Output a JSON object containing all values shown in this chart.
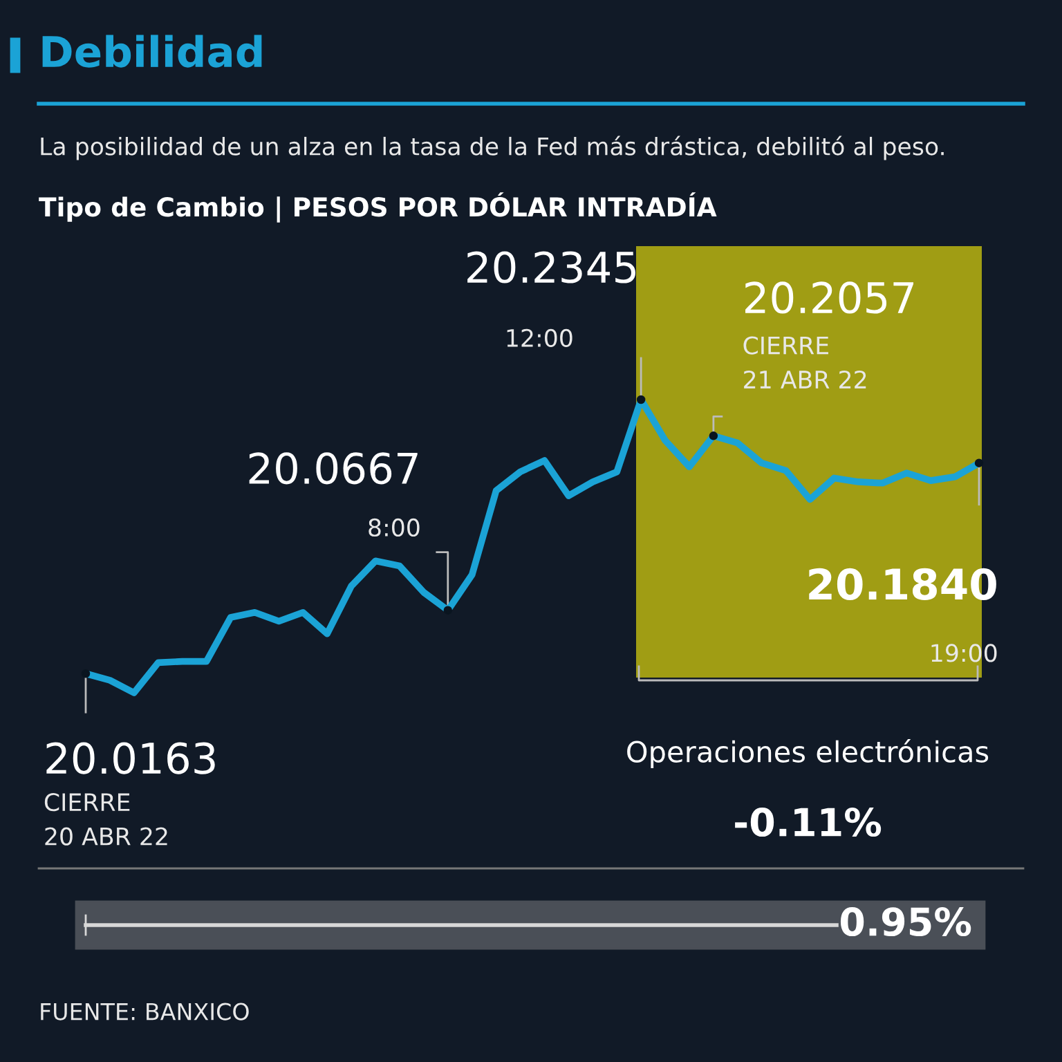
{
  "chart_data": {
    "type": "line",
    "title": "Debilidad",
    "subtitle": "La posibilidad de un alza en la tasa de la Fed más drástica, debilitó al peso.",
    "categories": [
      null,
      null,
      null,
      null,
      null,
      null,
      null,
      null,
      null,
      null,
      null,
      null,
      null,
      null,
      null,
      null,
      null,
      null,
      null,
      null,
      null,
      null,
      null,
      null,
      null,
      null,
      null,
      null,
      null,
      null,
      null,
      null,
      null,
      null,
      null,
      null,
      null,
      null
    ],
    "series": [
      {
        "color": "#1ba3d6",
        "values": [
          20.0163,
          20.011,
          20.001,
          20.025,
          20.026,
          20.026,
          20.061,
          20.065,
          20.058,
          20.065,
          20.048,
          20.086,
          20.106,
          20.102,
          20.081,
          20.0667,
          20.095,
          20.162,
          20.177,
          20.186,
          20.158,
          20.169,
          20.177,
          20.2345,
          20.202,
          20.181,
          20.2057,
          20.2,
          20.184,
          20.178,
          20.155,
          20.172,
          20.169,
          20.168,
          20.176,
          20.17,
          20.173,
          20.184
        ],
        "value_labels": [
          "20.0163",
          null,
          null,
          null,
          null,
          null,
          null,
          null,
          null,
          null,
          null,
          null,
          null,
          null,
          null,
          "20.0667",
          null,
          null,
          null,
          null,
          null,
          null,
          null,
          "20.2345",
          null,
          null,
          "20.2057",
          null,
          null,
          null,
          null,
          null,
          null,
          null,
          null,
          null,
          null,
          "20.1840"
        ]
      }
    ],
    "annotations": [
      "CIERRE\n20 ABR 22",
      "8:00",
      "12:00",
      "CIERRE\n21 ABR 22",
      "19:00",
      "Tipo de Cambio | PESOS POR DÓLAR INTRADÍA",
      "Operaciones electrónicas",
      "-0.11%",
      "0.95%",
      "FUENTE: BANXICO"
    ],
    "legend": false,
    "marker": "none",
    "line_style": "solid"
  }
}
